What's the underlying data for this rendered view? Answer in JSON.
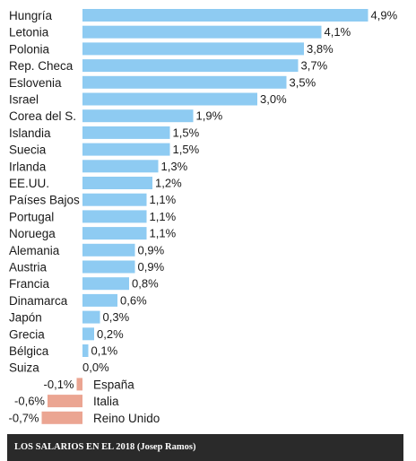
{
  "chart_data": {
    "type": "bar",
    "orientation": "horizontal",
    "categories": [
      "Hungría",
      "Letonia",
      "Polonia",
      "Rep. Checa",
      "Eslovenia",
      "Israel",
      "Corea del S.",
      "Islandia",
      "Suecia",
      "Irlanda",
      "EE.UU.",
      "Países Bajos",
      "Portugal",
      "Noruega",
      "Alemania",
      "Austria",
      "Francia",
      "Dinamarca",
      "Japón",
      "Grecia",
      "Bélgica",
      "Suiza",
      "España",
      "Italia",
      "Reino Unido"
    ],
    "values": [
      4.9,
      4.1,
      3.8,
      3.7,
      3.5,
      3.0,
      1.9,
      1.5,
      1.5,
      1.3,
      1.2,
      1.1,
      1.1,
      1.1,
      0.9,
      0.9,
      0.8,
      0.6,
      0.3,
      0.2,
      0.1,
      0.0,
      -0.1,
      -0.6,
      -0.7
    ],
    "value_labels": [
      "4,9%",
      "4,1%",
      "3,8%",
      "3,7%",
      "3,5%",
      "3,0%",
      "1,9%",
      "1,5%",
      "1,5%",
      "1,3%",
      "1,2%",
      "1,1%",
      "1,1%",
      "1,1%",
      "0,9%",
      "0,9%",
      "0,8%",
      "0,6%",
      "0,3%",
      "0,2%",
      "0,1%",
      "0,0%",
      "-0,1%",
      "-0,6%",
      "-0,7%"
    ],
    "title": "",
    "xlabel": "",
    "ylabel": "",
    "xlim": [
      -0.7,
      4.9
    ],
    "grid": false,
    "colors": {
      "positive": "#8ecbf2",
      "negative": "#eba592"
    }
  },
  "caption": "LOS SALARIOS EN EL 2018 (Josep Ramos)"
}
